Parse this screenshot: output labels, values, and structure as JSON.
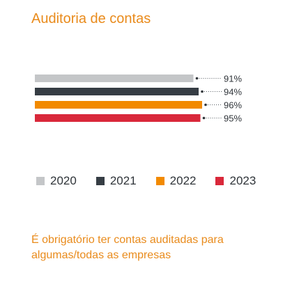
{
  "title": "Auditoria de contas",
  "footnote": "É obrigatório ter contas auditadas para algumas/todas as empresas",
  "chart_data": {
    "type": "bar",
    "orientation": "horizontal",
    "title": "Auditoria de contas",
    "xlim": [
      0,
      100
    ],
    "grid": false,
    "legend_position": "bottom",
    "value_suffix": "%",
    "series": [
      {
        "name": "2020",
        "value": 91,
        "color": "#c4c6c8"
      },
      {
        "name": "2021",
        "value": 94,
        "color": "#363d44"
      },
      {
        "name": "2022",
        "value": 96,
        "color": "#f28a00"
      },
      {
        "name": "2023",
        "value": 95,
        "color": "#d9283a"
      }
    ]
  }
}
